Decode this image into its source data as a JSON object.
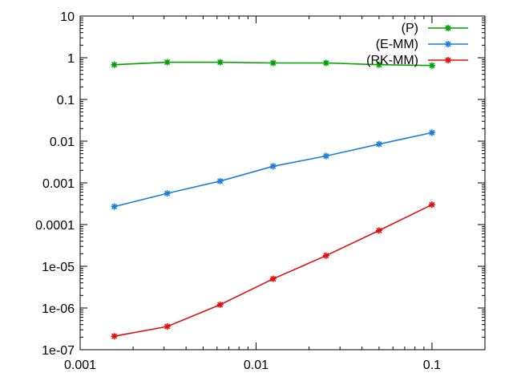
{
  "chart_data": {
    "type": "line",
    "x_scale": "log",
    "y_scale": "log",
    "xlim": [
      0.001,
      0.2
    ],
    "ylim": [
      1e-07,
      10
    ],
    "x_ticks": [
      {
        "value": 0.001,
        "label": "0.001"
      },
      {
        "value": 0.01,
        "label": "0.01"
      },
      {
        "value": 0.1,
        "label": "0.1"
      }
    ],
    "y_ticks": [
      {
        "value": 10,
        "label": "10"
      },
      {
        "value": 1,
        "label": "1"
      },
      {
        "value": 0.1,
        "label": "0.1"
      },
      {
        "value": 0.01,
        "label": "0.01"
      },
      {
        "value": 0.001,
        "label": "0.001"
      },
      {
        "value": 0.0001,
        "label": "0.0001"
      },
      {
        "value": 1e-05,
        "label": "1e-05"
      },
      {
        "value": 1e-06,
        "label": "1e-06"
      },
      {
        "value": 1e-07,
        "label": "1e-07"
      }
    ],
    "grid": false,
    "legend_position": "top-right",
    "x": [
      0.0015625,
      0.003125,
      0.00625,
      0.0125,
      0.025,
      0.05,
      0.1
    ],
    "series": [
      {
        "name": "(P)",
        "color": "#00a000",
        "values": [
          0.68,
          0.78,
          0.78,
          0.75,
          0.75,
          0.68,
          0.65
        ]
      },
      {
        "name": "(E-MM)",
        "color": "#1a7fdc",
        "values": [
          0.00027,
          0.00056,
          0.0011,
          0.0025,
          0.0044,
          0.0085,
          0.016
        ]
      },
      {
        "name": "(RK-MM)",
        "color": "#e01010",
        "values": [
          2.1e-07,
          3.6e-07,
          1.2e-06,
          5e-06,
          1.8e-05,
          7.2e-05,
          0.0003
        ]
      }
    ]
  }
}
